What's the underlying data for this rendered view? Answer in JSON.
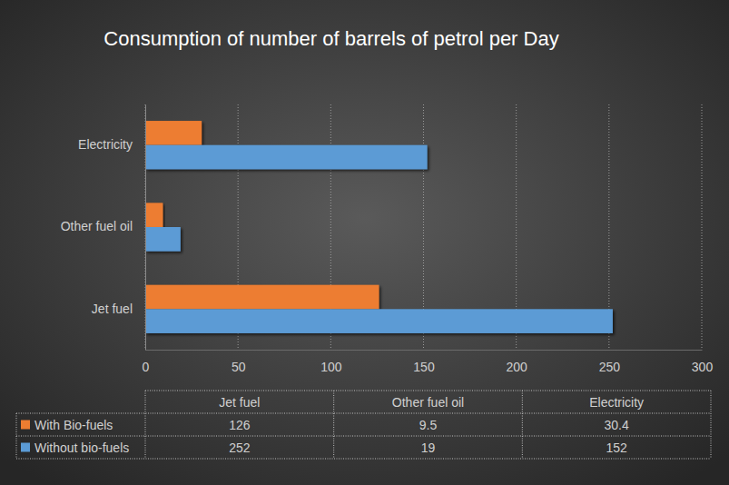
{
  "chart_data": {
    "type": "bar",
    "orientation": "horizontal",
    "title": "Consumption of number of barrels of petrol per Day",
    "categories": [
      "Jet fuel",
      "Other fuel oil",
      "Electricity"
    ],
    "series": [
      {
        "name": "With Bio-fuels",
        "color": "#ed7d31",
        "values": [
          126,
          9.5,
          30.4
        ]
      },
      {
        "name": "Without bio-fuels",
        "color": "#5b9bd5",
        "values": [
          252,
          19,
          152
        ]
      }
    ],
    "xlim": [
      0,
      300
    ],
    "xticks": [
      0,
      50,
      100,
      150,
      200,
      250,
      300
    ],
    "grid": true,
    "legend": "bottom"
  }
}
